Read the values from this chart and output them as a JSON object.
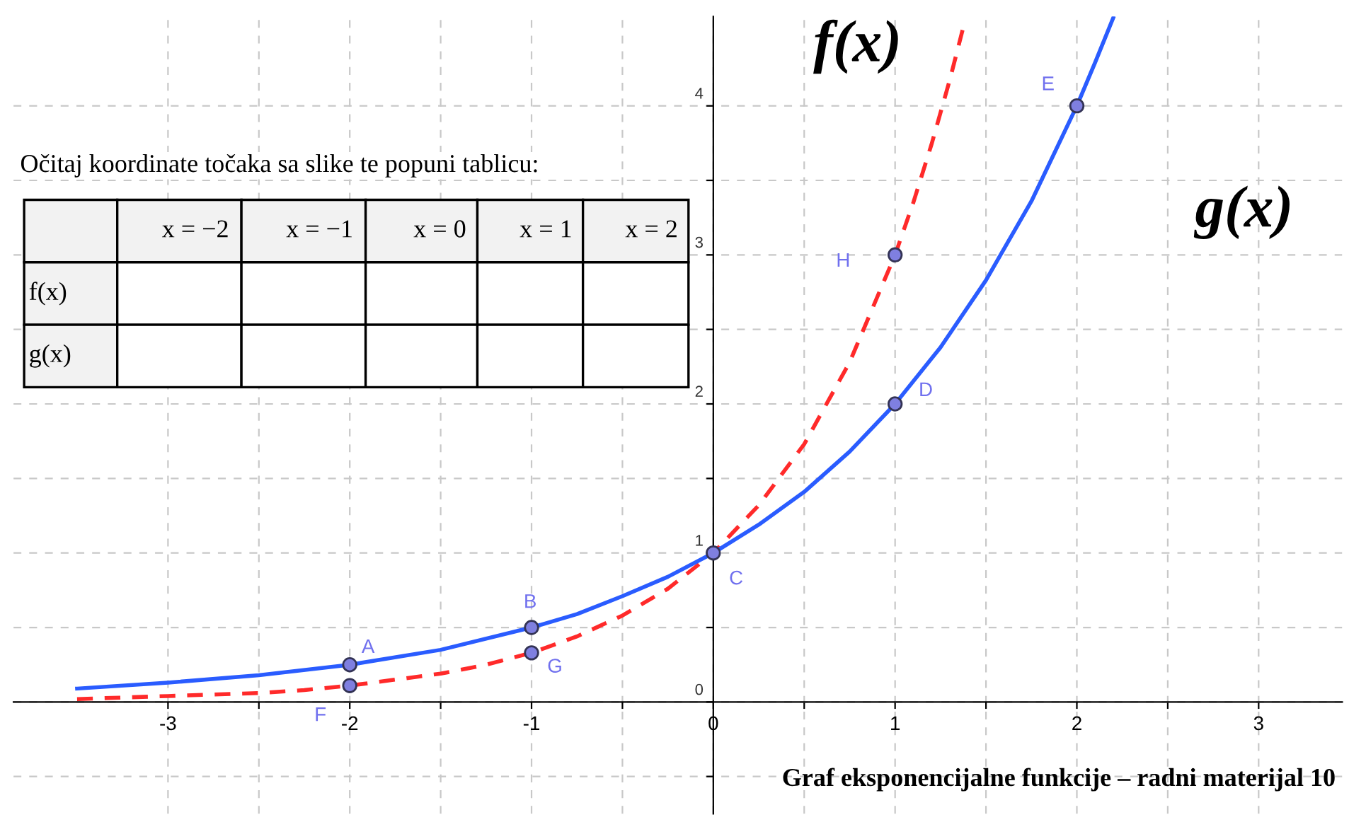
{
  "chart_data": {
    "type": "line",
    "annotations": [
      "Očitaj koordinate točaka sa slike te popuni tablicu:",
      "x = −2",
      "x = −1",
      "x = 0",
      "x = 1",
      "x = 2",
      "f(x)",
      "g(x)",
      "Graf eksponencijalne funkcije – radni materijal 10",
      {
        "text": "A",
        "x": -2,
        "y": 0.25
      },
      {
        "text": "B",
        "x": -1,
        "y": 0.5
      },
      {
        "text": "C",
        "x": 0,
        "y": 1
      },
      {
        "text": "D",
        "x": 1,
        "y": 2
      },
      {
        "text": "E",
        "x": 2,
        "y": 4
      },
      {
        "text": "F",
        "x": -2,
        "y": 0.11
      },
      {
        "text": "G",
        "x": -1,
        "y": 0.33
      },
      {
        "text": "H",
        "x": 1,
        "y": 3
      }
    ],
    "series": [
      {
        "name": "f(x)",
        "color": "#ff2a2a",
        "line_style": "dashed",
        "x": [
          -3.5,
          -3.25,
          -3,
          -2.75,
          -2.5,
          -2.25,
          -2,
          -1.75,
          -1.5,
          -1.25,
          -1,
          -0.75,
          -0.5,
          -0.25,
          0,
          0.25,
          0.5,
          0.75,
          1,
          1.1,
          1.2,
          1.3,
          1.38
        ],
        "values": [
          0.02,
          0.03,
          0.04,
          0.05,
          0.06,
          0.08,
          0.11,
          0.15,
          0.19,
          0.25,
          0.33,
          0.44,
          0.58,
          0.76,
          1,
          1.32,
          1.73,
          2.28,
          3,
          3.35,
          3.74,
          4.17,
          4.55
        ]
      },
      {
        "name": "g(x)",
        "color": "#2a5cff",
        "line_style": "solid",
        "x": [
          -3.5,
          -3,
          -2.5,
          -2,
          -1.5,
          -1,
          -0.75,
          -0.5,
          -0.25,
          0,
          0.25,
          0.5,
          0.75,
          1,
          1.25,
          1.5,
          1.75,
          2,
          2.1,
          2.2
        ],
        "values": [
          0.09,
          0.13,
          0.18,
          0.25,
          0.35,
          0.5,
          0.59,
          0.71,
          0.84,
          1,
          1.19,
          1.41,
          1.68,
          2,
          2.38,
          2.83,
          3.36,
          4,
          4.29,
          4.59
        ]
      },
      {
        "type": "scatter",
        "color": "#7f7fe0",
        "marker": "circle",
        "x": [
          -2,
          -1,
          0,
          1,
          2,
          -2,
          -1,
          1
        ],
        "values": [
          0.25,
          0.5,
          1,
          2,
          4,
          0.11,
          0.33,
          3
        ]
      }
    ],
    "xlim": [
      -3.85,
      3.46
    ],
    "ylim": [
      -0.75,
      4.6
    ],
    "xticks": [
      -3,
      {
        "value": -2.5,
        "label": null
      },
      -2,
      {
        "value": -1.5,
        "label": null
      },
      -1,
      {
        "value": -0.5,
        "label": null
      },
      0,
      {
        "value": 0.5,
        "label": null
      },
      1,
      {
        "value": 1.5,
        "label": null
      },
      2,
      {
        "value": 2.5,
        "label": null
      },
      3
    ],
    "yticks": [
      {
        "value": -0.5,
        "label": null
      },
      0,
      {
        "value": 0.5,
        "label": null
      },
      1,
      {
        "value": 1.5,
        "label": null
      },
      2,
      {
        "value": 2.5,
        "label": null
      },
      3,
      {
        "value": 3.5,
        "label": null
      },
      4
    ],
    "grid": true
  }
}
